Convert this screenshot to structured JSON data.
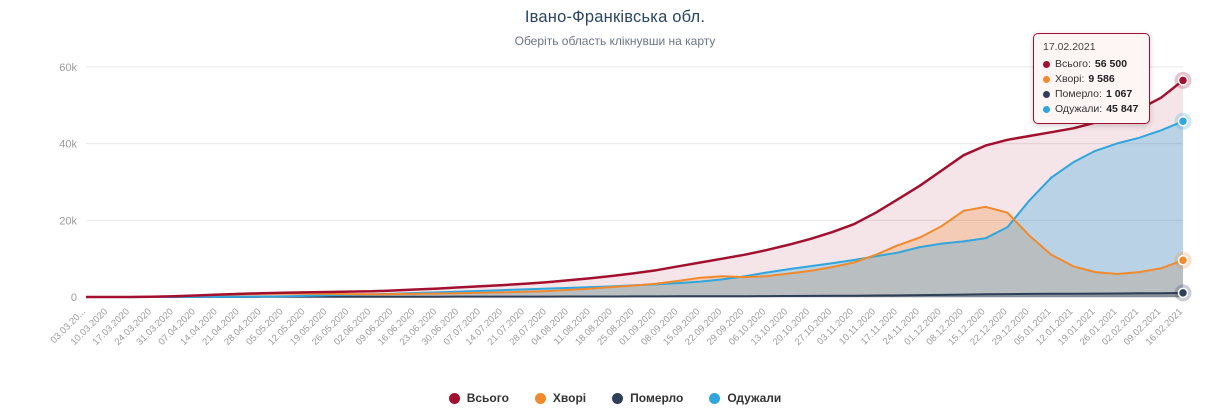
{
  "header": {
    "title": "Івано-Франківська обл.",
    "subtitle": "Оберіть область клікнувши на карту"
  },
  "tooltip": {
    "date": "17.02.2021",
    "rows": [
      {
        "label": "Всього:",
        "value": "56 500",
        "color": "#a3102f"
      },
      {
        "label": "Хворі:",
        "value": "9 586",
        "color": "#f1892d"
      },
      {
        "label": "Померло:",
        "value": "1 067",
        "color": "#2f3f57"
      },
      {
        "label": "Одужали:",
        "value": "45 847",
        "color": "#31a5de"
      }
    ]
  },
  "legend": {
    "items": [
      {
        "label": "Всього",
        "color": "#a3102f"
      },
      {
        "label": "Хворі",
        "color": "#f1892d"
      },
      {
        "label": "Померло",
        "color": "#2f3f57"
      },
      {
        "label": "Одужали",
        "color": "#31a5de"
      }
    ]
  },
  "chart_data": {
    "type": "area",
    "title": "Івано-Франківська обл.",
    "xlabel": "",
    "ylabel": "",
    "ylim": [
      0,
      60000
    ],
    "yticks": [
      0,
      20000,
      40000,
      60000
    ],
    "ytick_labels": [
      "0",
      "20k",
      "40k",
      "60k"
    ],
    "grid": true,
    "legend_position": "bottom",
    "x": [
      "03.03.20...",
      "10.03.2020",
      "17.03.2020",
      "24.03.2020",
      "31.03.2020",
      "07.04.2020",
      "14.04.2020",
      "21.04.2020",
      "28.04.2020",
      "05.05.2020",
      "12.05.2020",
      "19.05.2020",
      "26.05.2020",
      "02.06.2020",
      "09.06.2020",
      "16.06.2020",
      "23.06.2020",
      "30.06.2020",
      "07.07.2020",
      "14.07.2020",
      "21.07.2020",
      "28.07.2020",
      "04.08.2020",
      "11.08.2020",
      "18.08.2020",
      "25.08.2020",
      "01.09.2020",
      "08.09.2020",
      "15.09.2020",
      "22.09.2020",
      "29.09.2020",
      "06.10.2020",
      "13.10.2020",
      "20.10.2020",
      "27.10.2020",
      "03.11.2020",
      "10.11.2020",
      "17.11.2020",
      "24.11.2020",
      "01.12.2020",
      "08.12.2020",
      "15.12.2020",
      "22.12.2020",
      "29.12.2020",
      "05.01.2021",
      "12.01.2021",
      "19.01.2021",
      "26.01.2021",
      "02.02.2021",
      "09.02.2021",
      "16.02.2021"
    ],
    "series": [
      {
        "name": "Всього",
        "color": "#a3102f",
        "fill_opacity": 0.11,
        "line_width": 2.5,
        "values": [
          0,
          0,
          5,
          60,
          180,
          380,
          620,
          820,
          1000,
          1100,
          1200,
          1300,
          1400,
          1500,
          1700,
          1950,
          2200,
          2500,
          2800,
          3100,
          3450,
          3850,
          4350,
          4900,
          5500,
          6200,
          7000,
          8000,
          9000,
          10000,
          11000,
          12200,
          13600,
          15100,
          16900,
          19000,
          22000,
          25500,
          29000,
          33000,
          37000,
          39500,
          41000,
          42000,
          43000,
          44000,
          45500,
          47000,
          49000,
          52000,
          56500
        ]
      },
      {
        "name": "Хворі",
        "color": "#f1892d",
        "fill_opacity": 0.28,
        "line_width": 2,
        "values": [
          0,
          0,
          5,
          55,
          160,
          330,
          540,
          700,
          840,
          890,
          850,
          800,
          750,
          700,
          750,
          820,
          900,
          1000,
          1100,
          1200,
          1350,
          1550,
          1850,
          2200,
          2600,
          3000,
          3500,
          4200,
          5000,
          5400,
          5200,
          5400,
          6100,
          6800,
          7800,
          9000,
          11000,
          13500,
          15500,
          18500,
          22500,
          23500,
          22000,
          16000,
          11000,
          8000,
          6500,
          6000,
          6500,
          7500,
          9586
        ]
      },
      {
        "name": "Одужали",
        "color": "#31a5de",
        "fill_opacity": 0.3,
        "line_width": 2,
        "values": [
          0,
          0,
          0,
          3,
          15,
          35,
          55,
          85,
          115,
          155,
          290,
          435,
          580,
          725,
          870,
          1045,
          1210,
          1405,
          1600,
          1795,
          1990,
          2185,
          2380,
          2570,
          2760,
          3050,
          3340,
          3625,
          4010,
          4595,
          5380,
          6360,
          7240,
          8015,
          8790,
          9660,
          10620,
          11570,
          13010,
          13940,
          14500,
          15300,
          18240,
          25200,
          31170,
          35140,
          38110,
          40080,
          41540,
          43500,
          45847
        ]
      },
      {
        "name": "Померло",
        "color": "#2f3f57",
        "fill_opacity": 0.35,
        "line_width": 2,
        "values": [
          0,
          0,
          0,
          2,
          5,
          15,
          25,
          35,
          45,
          55,
          60,
          65,
          70,
          75,
          80,
          85,
          90,
          95,
          100,
          105,
          110,
          115,
          120,
          130,
          140,
          150,
          160,
          175,
          190,
          205,
          220,
          240,
          260,
          285,
          310,
          340,
          380,
          430,
          490,
          560,
          630,
          700,
          760,
          800,
          830,
          860,
          890,
          920,
          960,
          1000,
          1067
        ]
      }
    ]
  }
}
